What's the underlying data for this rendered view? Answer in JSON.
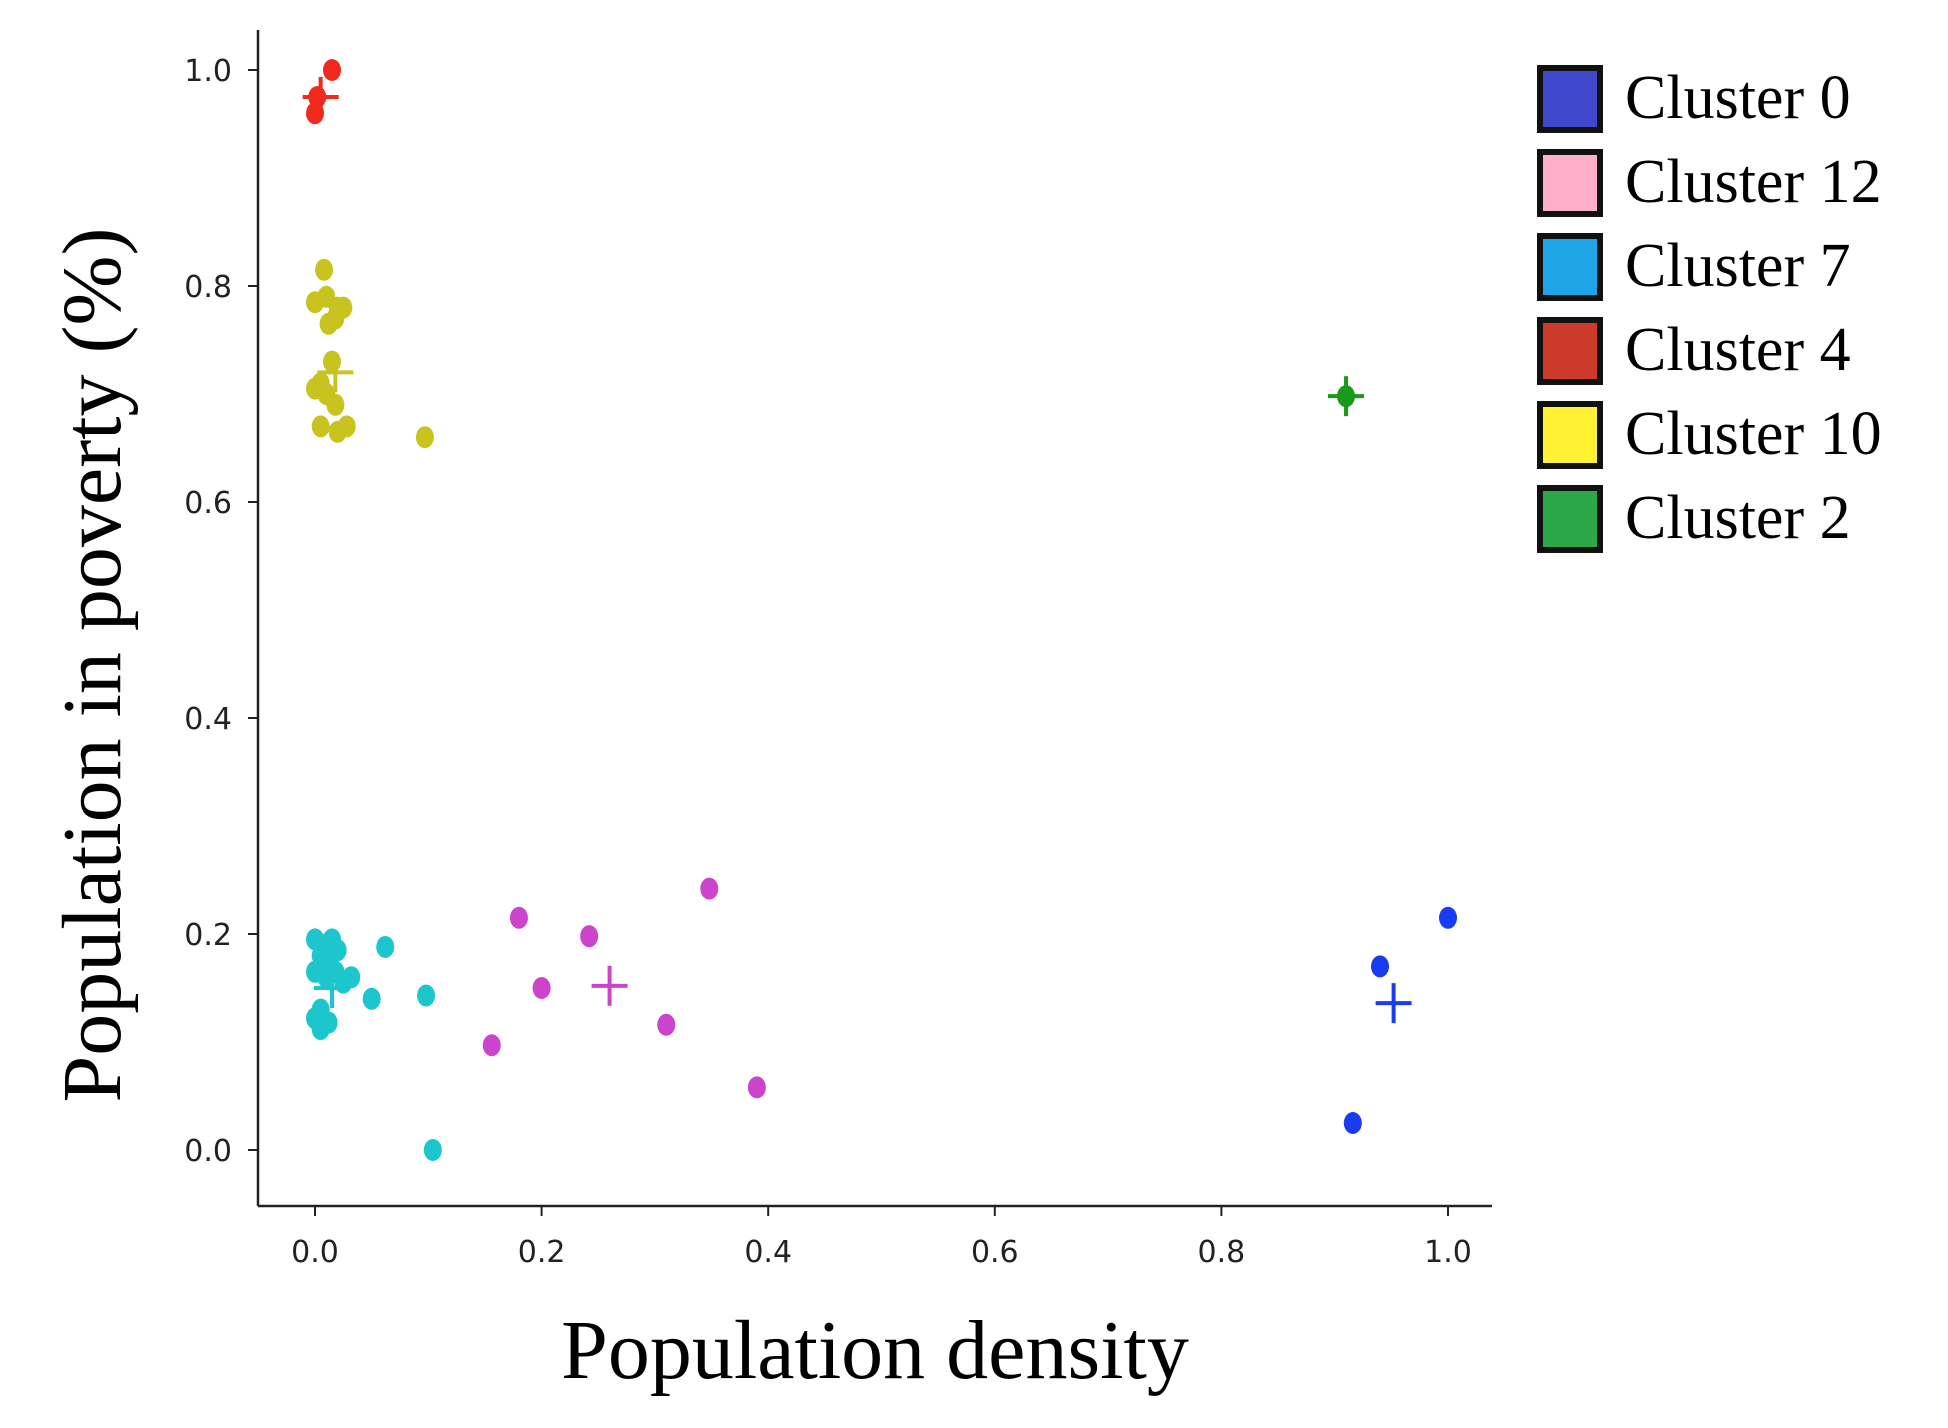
{
  "chart_data": {
    "type": "scatter",
    "title": "",
    "xlabel": "Population density",
    "ylabel": "Population in poverty (%)",
    "xlim": [
      -0.05,
      1.04
    ],
    "ylim": [
      -0.05,
      1.04
    ],
    "xticks": [
      "0.0",
      "0.2",
      "0.4",
      "0.6",
      "0.8",
      "1.0"
    ],
    "yticks": [
      "0.0",
      "0.2",
      "0.4",
      "0.6",
      "0.8",
      "1.0"
    ],
    "xtick_values": [
      0,
      0.2,
      0.4,
      0.6,
      0.8,
      1.0
    ],
    "ytick_values": [
      0,
      0.2,
      0.4,
      0.6,
      0.8,
      1.0
    ],
    "grid": false,
    "legend_position": "top-right-outside",
    "legend": [
      {
        "label": "Cluster 0",
        "color": "#3f48cc"
      },
      {
        "label": "Cluster 12",
        "color": "#ffaec9"
      },
      {
        "label": "Cluster 7",
        "color": "#1ea5e8"
      },
      {
        "label": "Cluster 4",
        "color": "#cc3a2a"
      },
      {
        "label": "Cluster 10",
        "color": "#fff232"
      },
      {
        "label": "Cluster 2",
        "color": "#2ba74a"
      }
    ],
    "series": [
      {
        "name": "red",
        "color": "#f02a1c",
        "points": [
          [
            0.015,
            1.0
          ],
          [
            0.0,
            0.96
          ],
          [
            0.002,
            0.975
          ]
        ],
        "centroid": [
          0.005,
          0.975
        ]
      },
      {
        "name": "olive",
        "color": "#c8c31e",
        "points": [
          [
            0.008,
            0.815
          ],
          [
            0.0,
            0.785
          ],
          [
            0.01,
            0.79
          ],
          [
            0.02,
            0.78
          ],
          [
            0.025,
            0.78
          ],
          [
            0.012,
            0.765
          ],
          [
            0.018,
            0.77
          ],
          [
            0.015,
            0.73
          ],
          [
            0.005,
            0.71
          ],
          [
            0.0,
            0.705
          ],
          [
            0.01,
            0.7
          ],
          [
            0.018,
            0.69
          ],
          [
            0.02,
            0.665
          ],
          [
            0.028,
            0.67
          ],
          [
            0.005,
            0.67
          ],
          [
            0.097,
            0.66
          ]
        ],
        "centroid": [
          0.018,
          0.72
        ]
      },
      {
        "name": "cyan",
        "color": "#1cc6cc",
        "points": [
          [
            0.0,
            0.195
          ],
          [
            0.008,
            0.19
          ],
          [
            0.015,
            0.195
          ],
          [
            0.02,
            0.185
          ],
          [
            0.005,
            0.18
          ],
          [
            0.012,
            0.175
          ],
          [
            0.0,
            0.165
          ],
          [
            0.01,
            0.16
          ],
          [
            0.018,
            0.165
          ],
          [
            0.025,
            0.155
          ],
          [
            0.032,
            0.16
          ],
          [
            0.062,
            0.188
          ],
          [
            0.05,
            0.14
          ],
          [
            0.098,
            0.143
          ],
          [
            0.005,
            0.13
          ],
          [
            0.0,
            0.122
          ],
          [
            0.012,
            0.118
          ],
          [
            0.005,
            0.112
          ],
          [
            0.104,
            0.0
          ]
        ],
        "centroid": [
          0.015,
          0.15
        ]
      },
      {
        "name": "magenta",
        "color": "#cc44cc",
        "points": [
          [
            0.18,
            0.215
          ],
          [
            0.242,
            0.198
          ],
          [
            0.348,
            0.242
          ],
          [
            0.2,
            0.15
          ],
          [
            0.31,
            0.116
          ],
          [
            0.156,
            0.097
          ],
          [
            0.39,
            0.058
          ]
        ],
        "centroid": [
          0.26,
          0.152
        ]
      },
      {
        "name": "blue",
        "color": "#1a3cf0",
        "points": [
          [
            1.0,
            0.215
          ],
          [
            0.94,
            0.17
          ],
          [
            0.916,
            0.025
          ]
        ],
        "centroid": [
          0.952,
          0.136
        ]
      },
      {
        "name": "green",
        "color": "#1a9a1a",
        "points": [
          [
            0.91,
            0.698
          ]
        ],
        "centroid": [
          0.91,
          0.698
        ]
      }
    ]
  }
}
